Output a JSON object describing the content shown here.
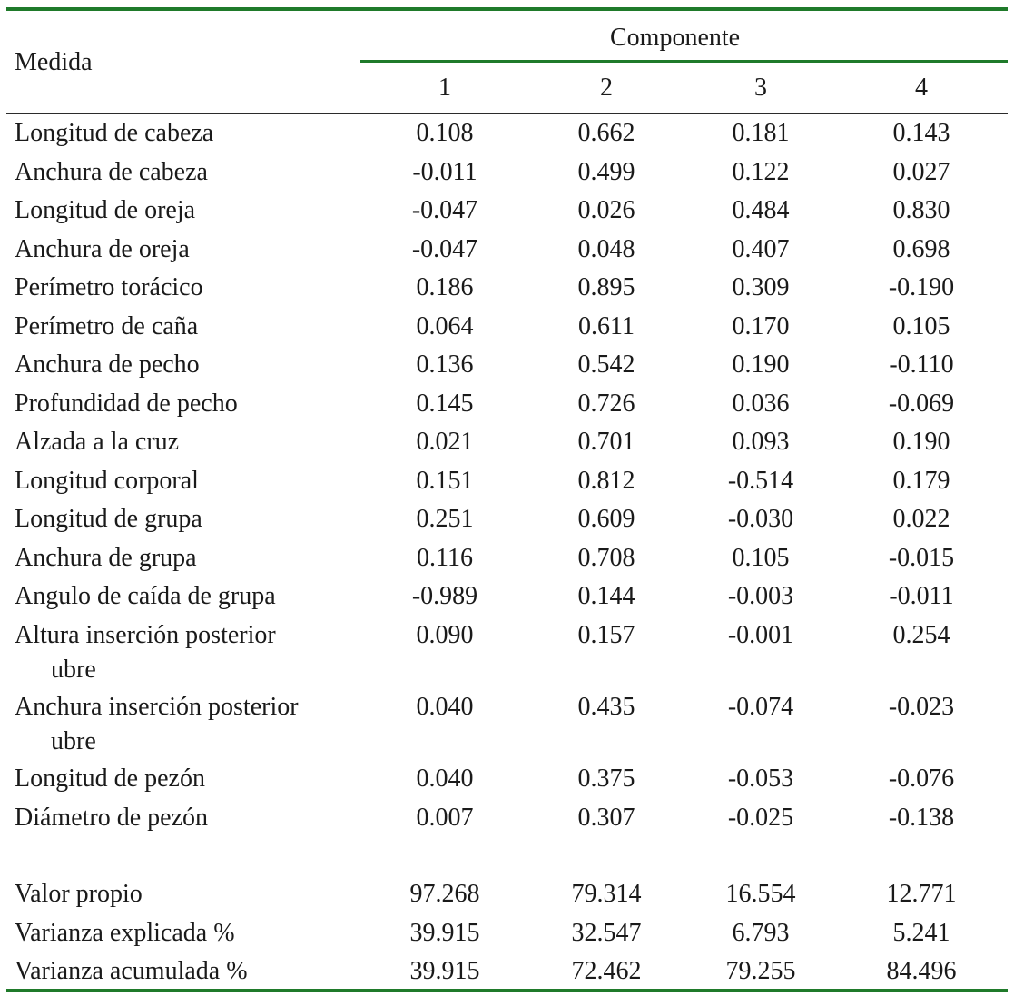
{
  "header": {
    "row_label": "Medida",
    "group_label": "Componente",
    "columns": [
      "1",
      "2",
      "3",
      "4"
    ]
  },
  "rows": [
    {
      "label": "Longitud de cabeza",
      "values": [
        "0.108",
        "0.662",
        "0.181",
        "0.143"
      ]
    },
    {
      "label": "Anchura de cabeza",
      "values": [
        "-0.011",
        "0.499",
        "0.122",
        "0.027"
      ]
    },
    {
      "label": "Longitud de oreja",
      "values": [
        "-0.047",
        "0.026",
        "0.484",
        "0.830"
      ]
    },
    {
      "label": "Anchura de oreja",
      "values": [
        "-0.047",
        "0.048",
        "0.407",
        "0.698"
      ]
    },
    {
      "label": "Perímetro torácico",
      "values": [
        "0.186",
        "0.895",
        "0.309",
        "-0.190"
      ]
    },
    {
      "label": "Perímetro de caña",
      "values": [
        "0.064",
        "0.611",
        "0.170",
        "0.105"
      ]
    },
    {
      "label": "Anchura de pecho",
      "values": [
        "0.136",
        "0.542",
        "0.190",
        "-0.110"
      ]
    },
    {
      "label": "Profundidad de pecho",
      "values": [
        "0.145",
        "0.726",
        "0.036",
        "-0.069"
      ]
    },
    {
      "label": "Alzada a la cruz",
      "values": [
        "0.021",
        "0.701",
        "0.093",
        "0.190"
      ]
    },
    {
      "label": "Longitud corporal",
      "values": [
        "0.151",
        "0.812",
        "-0.514",
        "0.179"
      ]
    },
    {
      "label": "Longitud de grupa",
      "values": [
        "0.251",
        "0.609",
        "-0.030",
        "0.022"
      ]
    },
    {
      "label": "Anchura de grupa",
      "values": [
        "0.116",
        "0.708",
        "0.105",
        "-0.015"
      ]
    },
    {
      "label": "Angulo de caída de grupa",
      "values": [
        "-0.989",
        "0.144",
        "-0.003",
        "-0.011"
      ]
    },
    {
      "label": "Altura inserción posterior",
      "label_cont": "ubre",
      "values": [
        "0.090",
        "0.157",
        "-0.001",
        "0.254"
      ]
    },
    {
      "label": "Anchura inserción posterior",
      "label_cont": "ubre",
      "values": [
        "0.040",
        "0.435",
        "-0.074",
        "-0.023"
      ]
    },
    {
      "label": "Longitud de pezón",
      "values": [
        "0.040",
        "0.375",
        "-0.053",
        "-0.076"
      ]
    },
    {
      "label": "Diámetro de pezón",
      "values": [
        "0.007",
        "0.307",
        "-0.025",
        "-0.138"
      ]
    }
  ],
  "summary": [
    {
      "label": "Valor propio",
      "values": [
        "97.268",
        "79.314",
        "16.554",
        "12.771"
      ]
    },
    {
      "label": "Varianza explicada %",
      "values": [
        "39.915",
        "32.547",
        "6.793",
        "5.241"
      ]
    },
    {
      "label": "Varianza acumulada %",
      "values": [
        "39.915",
        "72.462",
        "79.255",
        "84.496"
      ]
    }
  ],
  "colors": {
    "rule": "#1f7a2a",
    "text": "#1a1a1a"
  }
}
